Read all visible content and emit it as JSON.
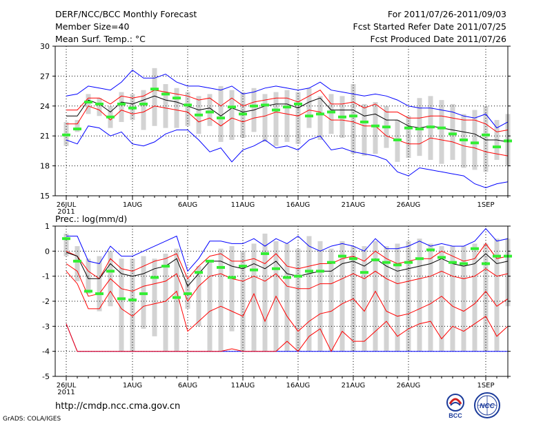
{
  "header": {
    "title": "DERF/NCC/BCC Monthly Forecast",
    "member_size": "Member Size=40",
    "variable": "Mean Surf. Temp.: °C",
    "period": "For 2011/07/26-2011/09/03",
    "started": "Fcst Started Refer Date 2011/07/25",
    "produced": "Fcst Produced Date 2011/07/26"
  },
  "footer": {
    "url": "http://cmdp.ncc.cma.gov.cn",
    "grads": "GrADS: COLA/IGES",
    "logo_left": "BCC",
    "logo_right": "NCC"
  },
  "colors": {
    "median": "#000000",
    "ensemble_range": "#0000ff",
    "percentile": "#ff0000",
    "bar": "#d3d3d3",
    "mean_marker": "#33ee33"
  },
  "chart_data": [
    {
      "type": "box",
      "title": "Mean Surf. Temp.: °C",
      "x_tick_labels": [
        "26JUL",
        "1AUG",
        "6AUG",
        "11AUG",
        "16AUG",
        "21AUG",
        "26AUG",
        "1SEP"
      ],
      "x_tick_days": [
        1,
        7,
        12,
        17,
        22,
        27,
        32,
        39
      ],
      "x_sub_label": "2011",
      "xlim": [
        0,
        41
      ],
      "ylim": [
        15,
        30
      ],
      "y_ticks": [
        15,
        18,
        21,
        24,
        27,
        30
      ],
      "grid": true,
      "x": [
        1,
        2,
        3,
        4,
        5,
        6,
        7,
        8,
        9,
        10,
        11,
        12,
        13,
        14,
        15,
        16,
        17,
        18,
        19,
        20,
        21,
        22,
        23,
        24,
        25,
        26,
        27,
        28,
        29,
        30,
        31,
        32,
        33,
        34,
        35,
        36,
        37,
        38,
        39,
        40,
        41
      ],
      "max": [
        25.0,
        25.2,
        26.0,
        25.8,
        25.6,
        26.4,
        27.6,
        26.8,
        26.8,
        27.2,
        26.4,
        26.0,
        26.0,
        25.8,
        25.6,
        26.0,
        25.2,
        25.4,
        25.8,
        26.0,
        25.8,
        25.6,
        25.8,
        26.4,
        25.6,
        25.4,
        25.2,
        25.0,
        25.2,
        25.0,
        24.6,
        24.0,
        23.8,
        23.8,
        23.6,
        23.4,
        23.0,
        22.8,
        23.2,
        21.8,
        22.4
      ],
      "q90": [
        23.6,
        23.6,
        24.8,
        24.8,
        24.2,
        25.0,
        24.8,
        25.0,
        25.6,
        25.4,
        25.2,
        25.0,
        24.6,
        24.8,
        24.0,
        24.8,
        24.0,
        24.4,
        24.6,
        24.8,
        24.8,
        24.4,
        25.0,
        25.6,
        24.2,
        24.2,
        24.4,
        23.8,
        24.2,
        23.4,
        23.4,
        22.8,
        22.8,
        23.0,
        23.0,
        22.8,
        22.6,
        22.6,
        22.2,
        21.4,
        21.6
      ],
      "median": [
        23.0,
        23.0,
        24.6,
        24.2,
        23.4,
        24.4,
        24.2,
        24.6,
        25.0,
        24.6,
        24.4,
        24.0,
        23.6,
        23.8,
        23.0,
        23.8,
        23.4,
        23.6,
        24.0,
        24.2,
        24.2,
        23.8,
        24.4,
        24.8,
        23.6,
        23.6,
        23.6,
        23.0,
        23.2,
        22.6,
        22.6,
        22.0,
        21.8,
        22.0,
        21.8,
        21.6,
        21.4,
        21.2,
        20.6,
        20.6,
        20.4
      ],
      "q10": [
        22.2,
        22.2,
        24.0,
        23.6,
        22.6,
        23.6,
        23.2,
        23.4,
        24.0,
        23.8,
        23.6,
        23.4,
        22.4,
        22.8,
        22.0,
        22.8,
        22.4,
        22.8,
        23.0,
        23.4,
        23.2,
        23.0,
        23.6,
        23.4,
        22.6,
        22.6,
        22.4,
        22.0,
        22.0,
        21.0,
        20.6,
        20.2,
        20.2,
        20.8,
        20.6,
        20.4,
        20.0,
        19.8,
        19.4,
        19.2,
        19.0
      ],
      "min": [
        20.6,
        20.2,
        22.0,
        21.8,
        21.0,
        21.4,
        20.2,
        20.0,
        20.4,
        21.2,
        21.6,
        21.6,
        20.6,
        19.4,
        19.8,
        18.4,
        19.6,
        20.0,
        20.6,
        19.8,
        20.0,
        19.6,
        20.6,
        21.0,
        19.6,
        19.8,
        19.4,
        19.2,
        19.0,
        18.6,
        17.4,
        17.0,
        17.8,
        17.6,
        17.4,
        17.2,
        17.0,
        16.2,
        15.8,
        16.2,
        16.4
      ],
      "bar_hi": [
        22.4,
        22.6,
        25.2,
        24.8,
        24.0,
        25.4,
        25.2,
        25.6,
        27.8,
        26.2,
        25.8,
        25.4,
        25.0,
        25.2,
        26.0,
        25.6,
        25.4,
        25.8,
        25.2,
        25.4,
        25.6,
        25.4,
        25.8,
        25.0,
        25.2,
        25.0,
        26.2,
        24.2,
        24.4,
        24.0,
        22.6,
        23.0,
        24.8,
        25.0,
        24.6,
        24.2,
        23.2,
        23.6,
        24.0,
        22.6,
        23.2
      ],
      "bar_lo": [
        20.0,
        21.4,
        23.2,
        23.0,
        21.8,
        22.4,
        22.6,
        21.6,
        22.0,
        21.8,
        21.8,
        22.0,
        21.2,
        22.0,
        20.4,
        20.6,
        20.8,
        21.4,
        20.4,
        20.0,
        20.4,
        20.2,
        21.8,
        20.6,
        21.2,
        20.8,
        19.2,
        19.0,
        19.2,
        19.8,
        18.4,
        18.8,
        19.0,
        18.6,
        18.2,
        18.6,
        17.8,
        17.6,
        17.4,
        18.6,
        18.0
      ],
      "mean": [
        21.1,
        21.7,
        24.4,
        24.2,
        22.9,
        24.2,
        23.8,
        24.2,
        25.7,
        25.2,
        24.8,
        24.1,
        23.1,
        23.4,
        22.8,
        23.9,
        23.2,
        24.0,
        24.1,
        23.6,
        23.9,
        24.2,
        23.0,
        23.2,
        23.4,
        22.9,
        23.0,
        22.4,
        22.0,
        21.9,
        20.6,
        21.8,
        21.7,
        21.9,
        21.8,
        21.2,
        20.6,
        20.3,
        21.1,
        19.9,
        20.5
      ]
    },
    {
      "type": "box",
      "title": "Prec.: log(mm/d)",
      "x_tick_labels": [
        "26JUL",
        "1AUG",
        "6AUG",
        "11AUG",
        "16AUG",
        "21AUG",
        "26AUG",
        "1SEP"
      ],
      "x_tick_days": [
        1,
        7,
        12,
        17,
        22,
        27,
        32,
        39
      ],
      "x_sub_label": "2011",
      "xlim": [
        0,
        41
      ],
      "ylim": [
        -5,
        1
      ],
      "y_ticks": [
        -5,
        -4,
        -3,
        -2,
        -1,
        0,
        1
      ],
      "grid": true,
      "x": [
        1,
        2,
        3,
        4,
        5,
        6,
        7,
        8,
        9,
        10,
        11,
        12,
        13,
        14,
        15,
        16,
        17,
        18,
        19,
        20,
        21,
        22,
        23,
        24,
        25,
        26,
        27,
        28,
        29,
        30,
        31,
        32,
        33,
        34,
        35,
        36,
        37,
        38,
        39,
        40,
        41
      ],
      "max": [
        0.6,
        0.6,
        -0.4,
        -0.5,
        0.2,
        -0.2,
        -0.2,
        0.0,
        0.2,
        0.4,
        0.6,
        -0.8,
        -0.3,
        0.4,
        0.4,
        0.3,
        0.3,
        0.5,
        0.2,
        0.5,
        0.3,
        0.6,
        0.2,
        0.0,
        0.2,
        0.3,
        0.2,
        0.0,
        0.5,
        0.1,
        0.1,
        0.2,
        0.4,
        0.2,
        0.3,
        0.2,
        0.2,
        0.4,
        0.9,
        0.4,
        0.5
      ],
      "q90": [
        0.0,
        -0.2,
        -0.8,
        -1.1,
        -0.3,
        -0.7,
        -0.8,
        -0.6,
        -0.4,
        -0.3,
        -0.1,
        -1.1,
        -0.6,
        -0.2,
        -0.1,
        -0.4,
        -0.4,
        -0.3,
        -0.5,
        -0.1,
        -0.6,
        -0.7,
        -0.6,
        -0.5,
        -0.5,
        -0.3,
        -0.2,
        -0.4,
        0.0,
        -0.3,
        -0.5,
        -0.4,
        -0.3,
        -0.3,
        0.0,
        -0.2,
        -0.4,
        -0.3,
        0.3,
        -0.3,
        -0.2
      ],
      "median": [
        -0.05,
        -0.2,
        -1.1,
        -1.1,
        -0.5,
        -0.9,
        -1.0,
        -0.9,
        -0.7,
        -0.6,
        -0.3,
        -1.4,
        -0.9,
        -0.4,
        -0.4,
        -0.6,
        -0.7,
        -0.5,
        -0.7,
        -0.4,
        -0.9,
        -1.0,
        -0.9,
        -0.8,
        -0.8,
        -0.5,
        -0.4,
        -0.6,
        -0.3,
        -0.6,
        -0.8,
        -0.7,
        -0.6,
        -0.5,
        -0.3,
        -0.5,
        -0.6,
        -0.5,
        -0.1,
        -0.5,
        -0.4
      ],
      "q10": [
        -0.5,
        -0.8,
        -1.8,
        -1.7,
        -1.1,
        -1.5,
        -1.6,
        -1.4,
        -1.3,
        -1.2,
        -0.9,
        -2.0,
        -1.4,
        -1.0,
        -0.9,
        -1.1,
        -1.2,
        -1.0,
        -1.2,
        -0.9,
        -1.4,
        -1.5,
        -1.5,
        -1.3,
        -1.3,
        -1.1,
        -0.9,
        -1.1,
        -0.8,
        -1.1,
        -1.3,
        -1.2,
        -1.1,
        -1.0,
        -0.8,
        -1.0,
        -1.1,
        -1.0,
        -0.7,
        -1.0,
        -0.9
      ],
      "q05": [
        -0.8,
        -1.3,
        -2.3,
        -2.3,
        -1.6,
        -2.3,
        -2.6,
        -2.2,
        -2.1,
        -2.0,
        -1.6,
        -3.2,
        -2.8,
        -2.4,
        -2.2,
        -2.4,
        -2.6,
        -1.7,
        -2.8,
        -1.8,
        -2.6,
        -3.2,
        -2.8,
        -2.5,
        -2.4,
        -2.1,
        -1.9,
        -2.4,
        -1.6,
        -2.4,
        -2.6,
        -2.5,
        -2.3,
        -2.1,
        -1.8,
        -2.2,
        -2.4,
        -2.1,
        -1.6,
        -2.2,
        -1.9
      ],
      "q01": [
        -2.9,
        -4.0,
        -4.0,
        -4.0,
        -4.0,
        -4.0,
        -4.0,
        -4.0,
        -4.0,
        -4.0,
        -4.0,
        -4.0,
        -4.0,
        -4.0,
        -4.0,
        -3.9,
        -4.0,
        -4.0,
        -4.0,
        -4.0,
        -3.6,
        -4.0,
        -3.4,
        -3.1,
        -4.0,
        -3.2,
        -3.6,
        -3.6,
        -3.2,
        -2.8,
        -3.4,
        -3.1,
        -2.9,
        -2.8,
        -3.5,
        -3.0,
        -3.2,
        -2.9,
        -2.6,
        -3.4,
        -3.0
      ],
      "min": [
        -2.9,
        -4.0,
        -4.0,
        -4.0,
        -4.0,
        -4.0,
        -4.0,
        -4.0,
        -4.0,
        -4.0,
        -4.0,
        -4.0,
        -4.0,
        -4.0,
        -4.0,
        -4.0,
        -4.0,
        -4.0,
        -4.0,
        -4.0,
        -4.0,
        -4.0,
        -4.0,
        -4.0,
        -4.0,
        -4.0,
        -4.0,
        -4.0,
        -4.0,
        -4.0,
        -4.0,
        -4.0,
        -4.0,
        -4.0,
        -4.0,
        -4.0,
        -4.0,
        -4.0,
        -4.0,
        -4.0,
        -4.0
      ],
      "bar_hi": [
        0.7,
        0.2,
        -0.3,
        -0.2,
        0.0,
        -0.3,
        -0.3,
        -0.2,
        -0.3,
        -0.1,
        0.1,
        -1.1,
        -0.6,
        -0.4,
        0.1,
        0.2,
        0.0,
        0.3,
        0.7,
        0.4,
        0.3,
        0.1,
        0.6,
        0.4,
        0.1,
        0.4,
        0.2,
        0.2,
        0.4,
        0.2,
        0.3,
        0.4,
        0.5,
        0.3,
        0.2,
        0.2,
        0.2,
        0.3,
        0.3,
        0.5,
        0.5
      ],
      "bar_lo": [
        -0.2,
        -1.2,
        -1.7,
        -2.4,
        -2.2,
        -4.0,
        -4.0,
        -3.1,
        -3.4,
        -4.0,
        -4.0,
        -2.3,
        -3.0,
        -4.0,
        -4.0,
        -3.2,
        -4.0,
        -4.0,
        -4.0,
        -4.0,
        -4.0,
        -4.0,
        -4.0,
        -4.0,
        -4.0,
        -4.0,
        -4.0,
        -4.0,
        -4.0,
        -4.0,
        -4.0,
        -4.0,
        -4.0,
        -4.0,
        -4.0,
        -4.0,
        -4.0,
        -4.0,
        -4.0,
        -4.0,
        -2.2
      ],
      "mean": [
        0.5,
        -0.4,
        -1.6,
        -1.7,
        -0.8,
        -1.9,
        -1.95,
        -1.7,
        -1.05,
        -0.6,
        -1.85,
        -1.7,
        -0.85,
        -0.4,
        -0.65,
        -1.05,
        -0.6,
        -0.75,
        -0.1,
        -0.7,
        -1.05,
        -1.0,
        -0.8,
        -0.8,
        -0.45,
        -0.2,
        -0.3,
        -0.85,
        -0.35,
        -0.45,
        -0.55,
        -0.45,
        -0.3,
        0.05,
        -0.25,
        -0.45,
        -0.5,
        0.1,
        -0.5,
        -0.2,
        -0.2
      ]
    }
  ]
}
